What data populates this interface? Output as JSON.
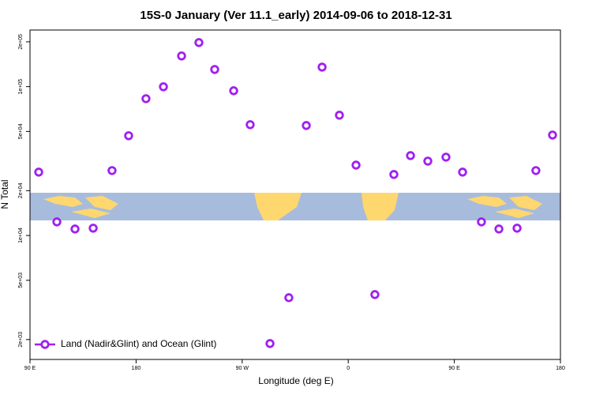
{
  "chart_data": {
    "type": "scatter",
    "title": "15S-0 January (Ver 11.1_early)   2014-09-06 to 2018-12-31",
    "x_label": "Longitude (deg E)",
    "y_label": "N Total",
    "log_y": true,
    "legend_position": "bottom-left",
    "xlim": [
      90,
      540
    ],
    "xticks": [
      {
        "value": 90,
        "label": "90 E"
      },
      180,
      {
        "value": 270,
        "label": "90 W"
      },
      {
        "value": 360,
        "label": "0"
      },
      {
        "value": 450,
        "label": "90 E"
      },
      {
        "value": 540,
        "label": "180"
      }
    ],
    "ylim": [
      1470,
      240000
    ],
    "yticks": [
      {
        "value": 2000,
        "label": "2e+03"
      },
      {
        "value": 5000,
        "label": "5e+03"
      },
      {
        "value": 10000,
        "label": "1e+04"
      },
      {
        "value": 20000,
        "label": "2e+04"
      },
      {
        "value": 50000,
        "label": "5e+04"
      },
      {
        "value": 100000,
        "label": "1e+05"
      },
      {
        "value": 200000,
        "label": "2e+05"
      }
    ],
    "series": [
      {
        "name": "Land (Nadir&Glint) and Ocean (Glint)",
        "color": "#a020f0",
        "x": [
          97.4,
          112.8,
          128.2,
          143.6,
          159.6,
          173.7,
          188.4,
          203.2,
          218.6,
          233.3,
          246.7,
          262.8,
          276.8,
          293.6,
          309.6,
          324.4,
          337.8,
          352.5,
          366.6,
          382.6,
          398.7,
          412.8,
          427.5,
          442.9,
          457.0,
          473.0,
          487.8,
          503.2,
          519.2,
          533.3
        ],
        "values": [
          26650,
          12340,
          11060,
          11200,
          27300,
          46800,
          83000,
          99800,
          160700,
          197700,
          130400,
          93800,
          55500,
          1880,
          3820,
          54800,
          135200,
          64300,
          29700,
          4010,
          25700,
          34400,
          31600,
          33600,
          26650,
          12340,
          11060,
          11200,
          27300,
          47300
        ]
      }
    ]
  }
}
